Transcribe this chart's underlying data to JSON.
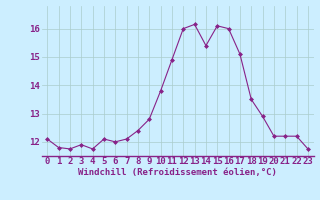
{
  "x": [
    0,
    1,
    2,
    3,
    4,
    5,
    6,
    7,
    8,
    9,
    10,
    11,
    12,
    13,
    14,
    15,
    16,
    17,
    18,
    19,
    20,
    21,
    22,
    23
  ],
  "y": [
    12.1,
    11.8,
    11.75,
    11.9,
    11.75,
    12.1,
    12.0,
    12.1,
    12.4,
    12.8,
    13.8,
    14.9,
    16.0,
    16.15,
    15.4,
    16.1,
    16.0,
    15.1,
    13.5,
    12.9,
    12.2,
    12.2,
    12.2,
    11.75
  ],
  "line_color": "#882288",
  "marker": "D",
  "marker_size": 2.0,
  "bg_color": "#cceeff",
  "grid_color": "#aacccc",
  "xlabel": "Windchill (Refroidissement éolien,°C)",
  "xlabel_fontsize": 6.5,
  "tick_fontsize": 6.5,
  "ylim": [
    11.5,
    16.8
  ],
  "xlim": [
    -0.5,
    23.5
  ],
  "yticks": [
    12,
    13,
    14,
    15,
    16
  ],
  "xticks": [
    0,
    1,
    2,
    3,
    4,
    5,
    6,
    7,
    8,
    9,
    10,
    11,
    12,
    13,
    14,
    15,
    16,
    17,
    18,
    19,
    20,
    21,
    22,
    23
  ]
}
